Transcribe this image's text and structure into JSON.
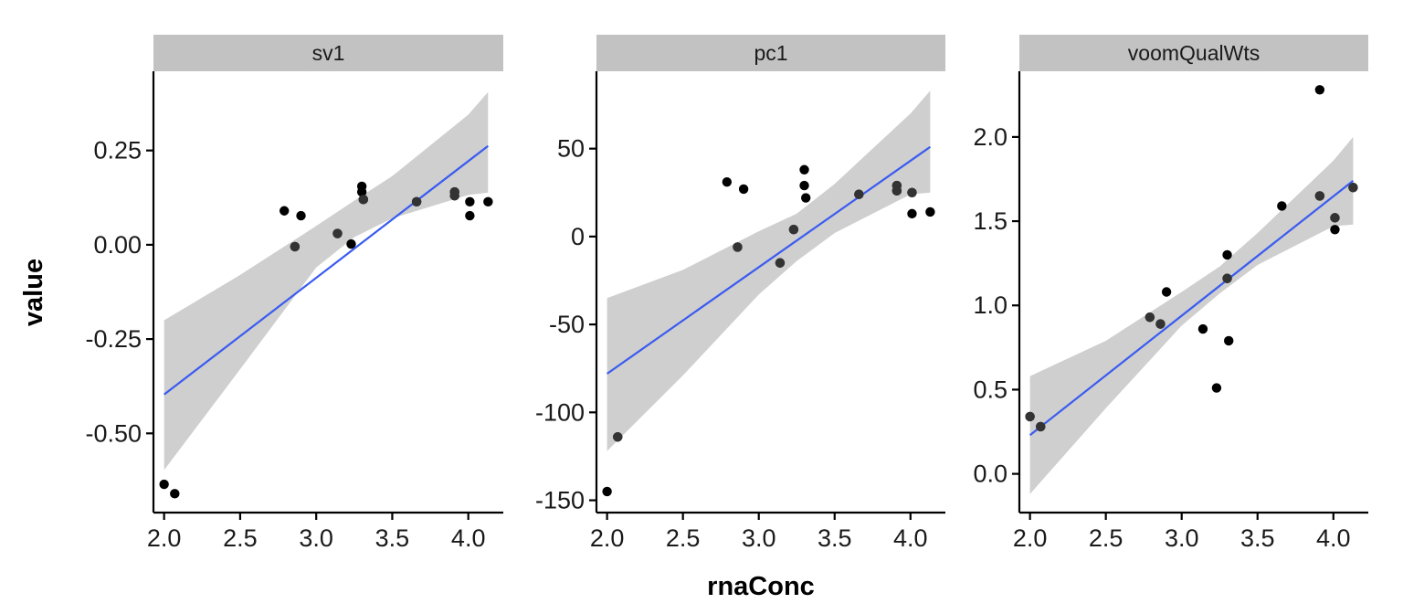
{
  "chart_data": {
    "type": "scatter",
    "xlabel": "rnaConc",
    "ylabel": "value",
    "colors": {
      "fit_line": "#3366FF",
      "ci_band": "#cccccc",
      "strip": "#c2c2c2",
      "points": "#000000"
    },
    "panels": [
      {
        "title": "sv1",
        "xlim": [
          1.93,
          4.23
        ],
        "ylim": [
          -0.71,
          0.46
        ],
        "xticks": [
          {
            "v": 2.0,
            "label": "2.0"
          },
          {
            "v": 2.5,
            "label": "2.5"
          },
          {
            "v": 3.0,
            "label": "3.0"
          },
          {
            "v": 3.5,
            "label": "3.5"
          },
          {
            "v": 4.0,
            "label": "4.0"
          }
        ],
        "yticks": [
          {
            "v": -0.5,
            "label": "-0.50"
          },
          {
            "v": -0.25,
            "label": "-0.25"
          },
          {
            "v": 0.0,
            "label": "0.00"
          },
          {
            "v": 0.25,
            "label": "0.25"
          }
        ],
        "points": [
          [
            2.0,
            -0.635
          ],
          [
            2.07,
            -0.66
          ],
          [
            2.79,
            0.09
          ],
          [
            2.86,
            -0.005
          ],
          [
            2.9,
            0.077
          ],
          [
            3.14,
            0.03
          ],
          [
            3.23,
            0.002
          ],
          [
            3.3,
            0.155
          ],
          [
            3.3,
            0.14
          ],
          [
            3.31,
            0.12
          ],
          [
            3.66,
            0.114
          ],
          [
            3.91,
            0.14
          ],
          [
            3.91,
            0.13
          ],
          [
            4.01,
            0.114
          ],
          [
            4.01,
            0.077
          ],
          [
            4.13,
            0.114
          ]
        ],
        "fit": {
          "x": [
            2.0,
            4.13
          ],
          "y": [
            -0.397,
            0.262
          ]
        },
        "ci": {
          "x": [
            2.0,
            2.5,
            3.0,
            3.25,
            3.5,
            4.0,
            4.13
          ],
          "lower": [
            -0.597,
            -0.33,
            -0.06,
            0.02,
            0.07,
            0.132,
            0.138
          ],
          "upper": [
            -0.2,
            -0.08,
            0.05,
            0.117,
            0.182,
            0.345,
            0.405
          ]
        }
      },
      {
        "title": "pc1",
        "xlim": [
          1.93,
          4.23
        ],
        "ylim": [
          -157,
          94
        ],
        "xticks": [
          {
            "v": 2.0,
            "label": "2.0"
          },
          {
            "v": 2.5,
            "label": "2.5"
          },
          {
            "v": 3.0,
            "label": "3.0"
          },
          {
            "v": 3.5,
            "label": "3.5"
          },
          {
            "v": 4.0,
            "label": "4.0"
          }
        ],
        "yticks": [
          {
            "v": -150,
            "label": "-150"
          },
          {
            "v": -100,
            "label": "-100"
          },
          {
            "v": -50,
            "label": "-50"
          },
          {
            "v": 0,
            "label": "0"
          },
          {
            "v": 50,
            "label": "50"
          }
        ],
        "points": [
          [
            2.0,
            -145
          ],
          [
            2.07,
            -114
          ],
          [
            2.79,
            31
          ],
          [
            2.86,
            -6
          ],
          [
            2.9,
            27
          ],
          [
            3.14,
            -15
          ],
          [
            3.23,
            4
          ],
          [
            3.3,
            38
          ],
          [
            3.3,
            29
          ],
          [
            3.31,
            22
          ],
          [
            3.66,
            24
          ],
          [
            3.91,
            29
          ],
          [
            3.91,
            26
          ],
          [
            4.01,
            25
          ],
          [
            4.01,
            13
          ],
          [
            4.13,
            14
          ]
        ],
        "fit": {
          "x": [
            2.0,
            4.13
          ],
          "y": [
            -78,
            51
          ]
        },
        "ci": {
          "x": [
            2.0,
            2.5,
            3.0,
            3.25,
            3.5,
            4.0,
            4.13
          ],
          "lower": [
            -122,
            -79,
            -33,
            -14,
            2,
            24,
            25
          ],
          "upper": [
            -35,
            -19,
            3,
            13,
            30,
            70,
            83
          ]
        }
      },
      {
        "title": "voomQualWts",
        "xlim": [
          1.93,
          4.23
        ],
        "ylim": [
          -0.23,
          2.39
        ],
        "xticks": [
          {
            "v": 2.0,
            "label": "2.0"
          },
          {
            "v": 2.5,
            "label": "2.5"
          },
          {
            "v": 3.0,
            "label": "3.0"
          },
          {
            "v": 3.5,
            "label": "3.5"
          },
          {
            "v": 4.0,
            "label": "4.0"
          }
        ],
        "yticks": [
          {
            "v": 0.0,
            "label": "0.0"
          },
          {
            "v": 0.5,
            "label": "0.5"
          },
          {
            "v": 1.0,
            "label": "1.0"
          },
          {
            "v": 1.5,
            "label": "1.5"
          },
          {
            "v": 2.0,
            "label": "2.0"
          }
        ],
        "points": [
          [
            2.0,
            0.34
          ],
          [
            2.07,
            0.28
          ],
          [
            2.79,
            0.93
          ],
          [
            2.86,
            0.89
          ],
          [
            2.9,
            1.08
          ],
          [
            3.14,
            0.86
          ],
          [
            3.23,
            0.51
          ],
          [
            3.3,
            1.3
          ],
          [
            3.3,
            1.16
          ],
          [
            3.31,
            0.79
          ],
          [
            3.66,
            1.59
          ],
          [
            3.91,
            2.28
          ],
          [
            3.91,
            1.65
          ],
          [
            4.01,
            1.52
          ],
          [
            4.01,
            1.45
          ],
          [
            4.13,
            1.7
          ]
        ],
        "fit": {
          "x": [
            2.0,
            4.13
          ],
          "y": [
            0.23,
            1.74
          ]
        },
        "ci": {
          "x": [
            2.0,
            2.5,
            3.0,
            3.25,
            3.5,
            4.0,
            4.13
          ],
          "lower": [
            -0.12,
            0.39,
            0.88,
            1.07,
            1.24,
            1.47,
            1.48
          ],
          "upper": [
            0.58,
            0.79,
            1.08,
            1.23,
            1.43,
            1.86,
            2.0
          ]
        }
      }
    ]
  }
}
